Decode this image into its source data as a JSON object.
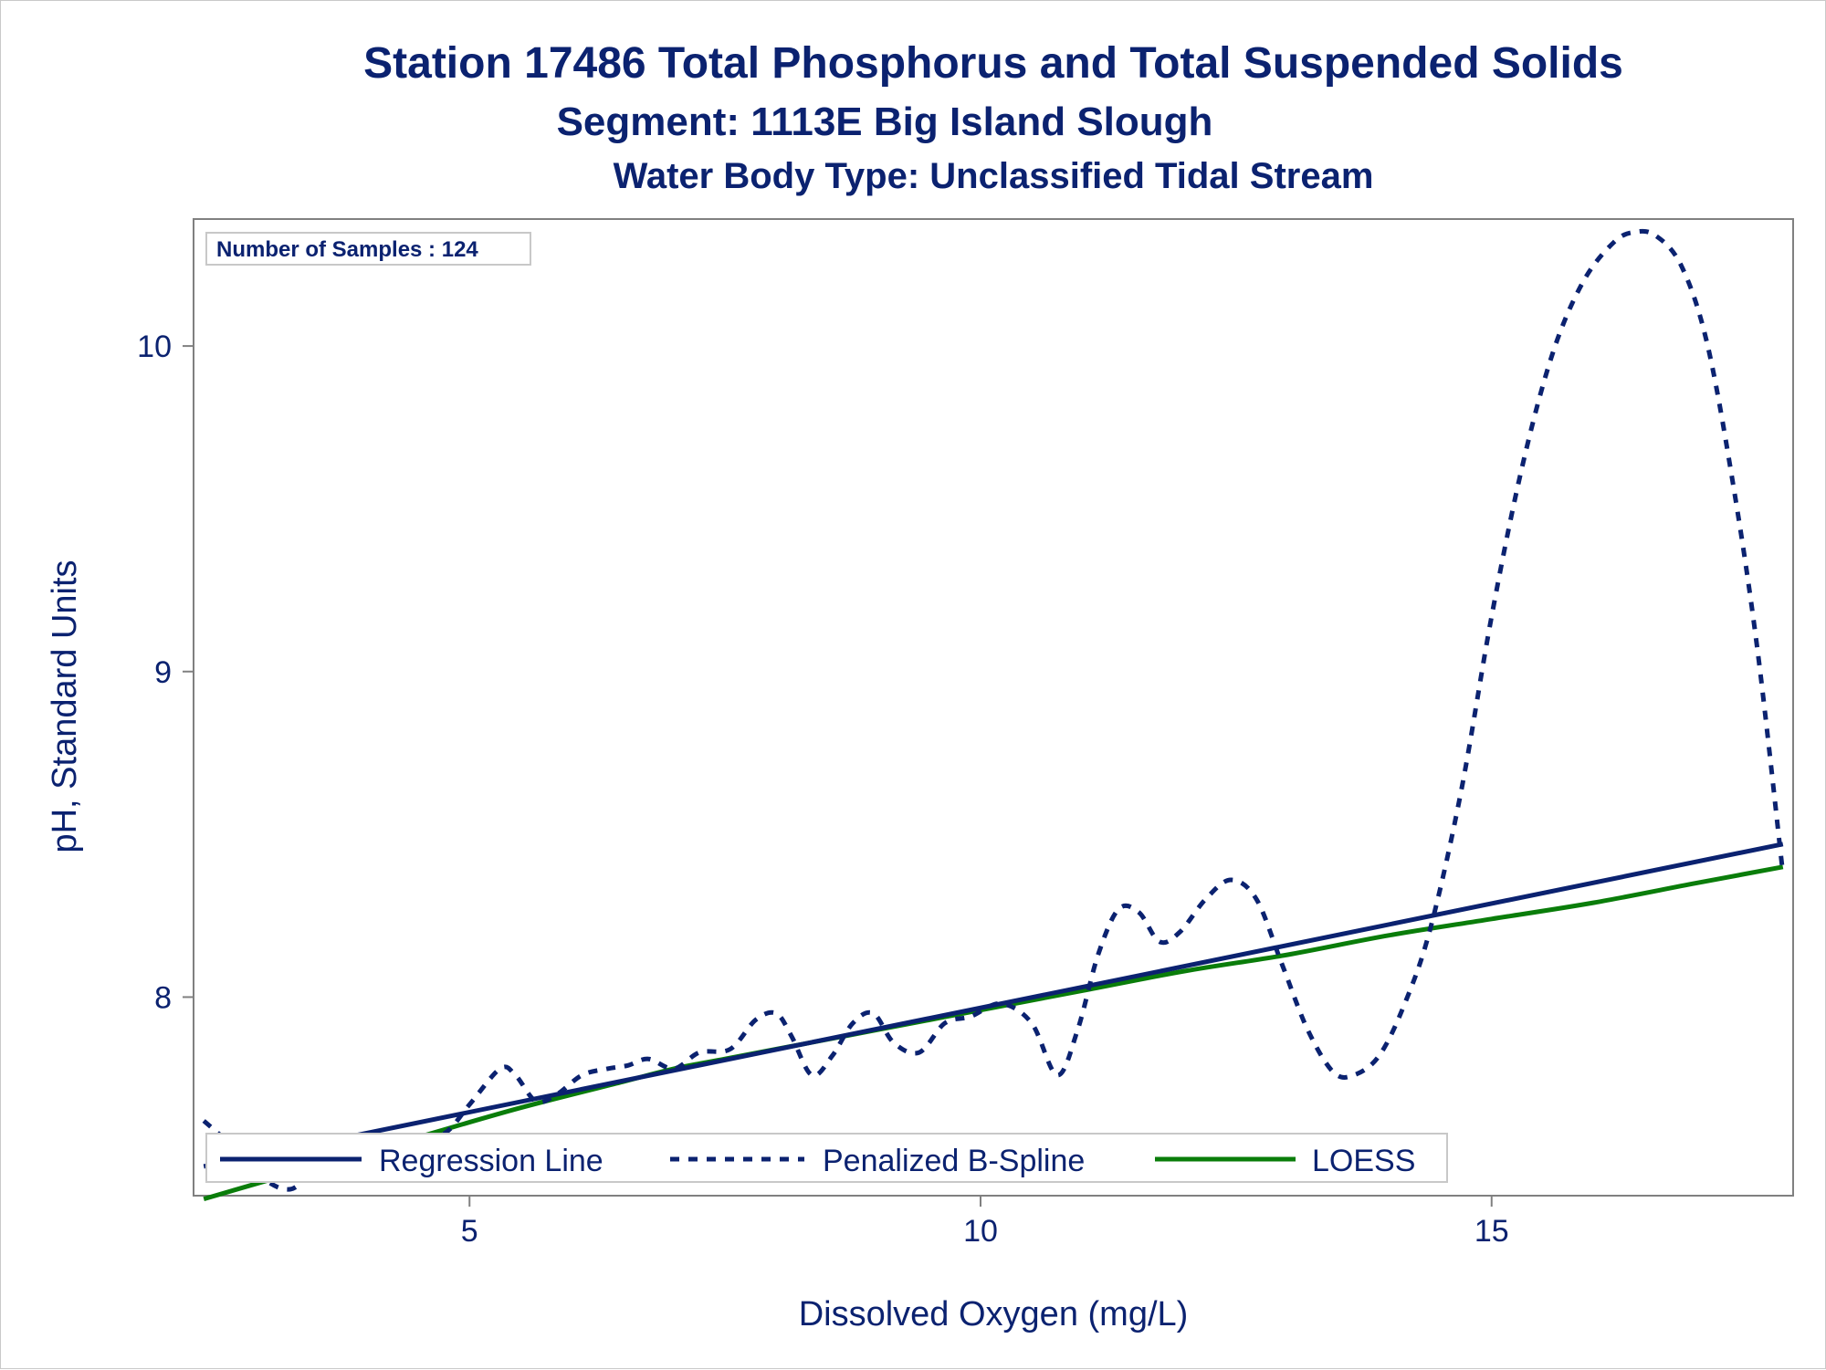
{
  "chart_data": {
    "type": "line",
    "title": "Station 17486  Total Phosphorus and Total Suspended Solids",
    "subtitle": "Segment: 1113E  Big Island Slough",
    "subtitle2": "Water Body Type: Unclassified Tidal Stream",
    "annotation": "Number of Samples : 124",
    "xlabel": "Dissolved Oxygen (mg/L)",
    "ylabel": "pH, Standard Units",
    "xlim": [
      2.3,
      17.95
    ],
    "ylim": [
      7.39,
      10.39
    ],
    "x_ticks": [
      5,
      10,
      15
    ],
    "y_ticks": [
      8,
      9,
      10
    ],
    "x_tick_labels": [
      "5",
      "10",
      "15"
    ],
    "y_tick_labels": [
      "8",
      "9",
      "10"
    ],
    "grid": false,
    "legend_position": "bottom-left inside",
    "series": [
      {
        "name": "Regression Line",
        "style": "solid",
        "color": "#0b2270",
        "x": [
          2.4,
          17.85
        ],
        "y": [
          7.48,
          8.47
        ]
      },
      {
        "name": "Penalized B-Spline",
        "style": "dashed",
        "color": "#0b2270",
        "x": [
          2.4,
          2.65,
          2.95,
          3.25,
          3.55,
          3.85,
          4.1,
          4.4,
          4.75,
          5.0,
          5.3,
          5.45,
          5.65,
          5.85,
          6.1,
          6.35,
          6.55,
          6.75,
          7.0,
          7.25,
          7.55,
          7.8,
          8.0,
          8.15,
          8.35,
          8.55,
          8.75,
          8.95,
          9.15,
          9.4,
          9.65,
          9.9,
          10.2,
          10.5,
          10.75,
          10.95,
          11.15,
          11.35,
          11.55,
          11.75,
          11.95,
          12.2,
          12.45,
          12.7,
          12.95,
          13.2,
          13.45,
          13.65,
          13.9,
          14.15,
          14.4,
          14.7,
          15.0,
          15.3,
          15.6,
          15.9,
          16.2,
          16.4,
          16.6,
          16.85,
          17.1,
          17.35,
          17.6,
          17.85
        ],
        "y": [
          7.62,
          7.55,
          7.45,
          7.41,
          7.48,
          7.44,
          7.52,
          7.55,
          7.58,
          7.67,
          7.78,
          7.76,
          7.68,
          7.7,
          7.76,
          7.78,
          7.79,
          7.81,
          7.78,
          7.83,
          7.84,
          7.93,
          7.95,
          7.88,
          7.76,
          7.82,
          7.92,
          7.95,
          7.86,
          7.83,
          7.92,
          7.94,
          7.98,
          7.92,
          7.76,
          7.9,
          8.13,
          8.27,
          8.26,
          8.17,
          8.2,
          8.3,
          8.36,
          8.3,
          8.1,
          7.9,
          7.77,
          7.76,
          7.82,
          7.98,
          8.21,
          8.63,
          9.17,
          9.63,
          9.98,
          10.2,
          10.32,
          10.35,
          10.34,
          10.25,
          10.02,
          9.6,
          9.07,
          8.38
        ]
      },
      {
        "name": "LOESS",
        "style": "solid",
        "color": "#0a7d0a",
        "x": [
          2.4,
          3.5,
          4.5,
          5.5,
          6.5,
          7.0,
          7.5,
          8.0,
          8.5,
          9.0,
          10.0,
          11.0,
          12.0,
          13.0,
          14.0,
          15.0,
          16.0,
          17.0,
          17.85
        ],
        "y": [
          7.38,
          7.48,
          7.57,
          7.66,
          7.74,
          7.78,
          7.81,
          7.84,
          7.87,
          7.9,
          7.96,
          8.02,
          8.08,
          8.13,
          8.19,
          8.24,
          8.29,
          8.35,
          8.4
        ]
      }
    ]
  }
}
